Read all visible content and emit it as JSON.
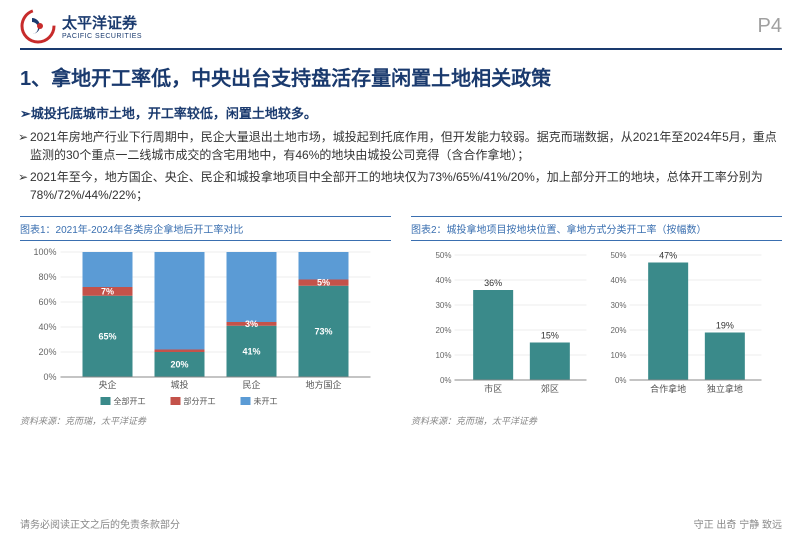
{
  "header": {
    "company_cn": "太平洋证券",
    "company_en": "PACIFIC SECURITIES",
    "page": "P4"
  },
  "title": "1、拿地开工率低，中央出台支持盘活存量闲置土地相关政策",
  "subtitle": "➢城投托底城市土地，开工率较低，闲置土地较多。",
  "bullets": [
    "2021年房地产行业下行周期中，民企大量退出土地市场，城投起到托底作用，但开发能力较弱。据克而瑞数据，从2021年至2024年5月，重点监测的30个重点一二线城市成交的含宅用地中，有46%的地块由城投公司竞得（含合作拿地）；",
    "2021年至今，地方国企、央企、民企和城投拿地项目中全部开工的地块仅为73%/65%/41%/20%，加上部分开工的地块，总体开工率分别为78%/72%/44%/22%；"
  ],
  "chart1": {
    "title": "图表1：2021年-2024年各类房企拿地后开工率对比",
    "type": "stacked-bar",
    "categories": [
      "央企",
      "城投",
      "民企",
      "地方国企"
    ],
    "series": [
      {
        "name": "全部开工",
        "color": "#3a8a8a",
        "values": [
          65,
          20,
          41,
          73
        ]
      },
      {
        "name": "部分开工",
        "color": "#c4524a",
        "values": [
          7,
          2,
          3,
          5
        ]
      },
      {
        "name": "未开工",
        "color": "#5b9bd5",
        "values": [
          28,
          78,
          56,
          22
        ]
      }
    ],
    "labels": {
      "央企": [
        "65%",
        "7%"
      ],
      "城投": [
        "20%"
      ],
      "民企": [
        "41%",
        "3%"
      ],
      "地方国企": [
        "73%",
        "5%"
      ]
    },
    "ylim": [
      0,
      100
    ],
    "ytick_step": 20,
    "source": "资料来源：克而瑞，太平洋证券"
  },
  "chart2": {
    "title": "图表2：城投拿地项目按地块位置、拿地方式分类开工率（按幅数）",
    "type": "bar",
    "groups": [
      {
        "cats": [
          "市区",
          "郊区"
        ],
        "vals": [
          36,
          15
        ]
      },
      {
        "cats": [
          "合作拿地",
          "独立拿地"
        ],
        "vals": [
          47,
          19
        ]
      }
    ],
    "bar_color": "#3a8a8a",
    "ylim": [
      0,
      50
    ],
    "ytick_step": 10,
    "source": "资料来源：克而瑞，太平洋证券"
  },
  "footer": {
    "left": "请务必阅读正文之后的免责条款部分",
    "right": "守正 出奇 宁静 致远"
  }
}
